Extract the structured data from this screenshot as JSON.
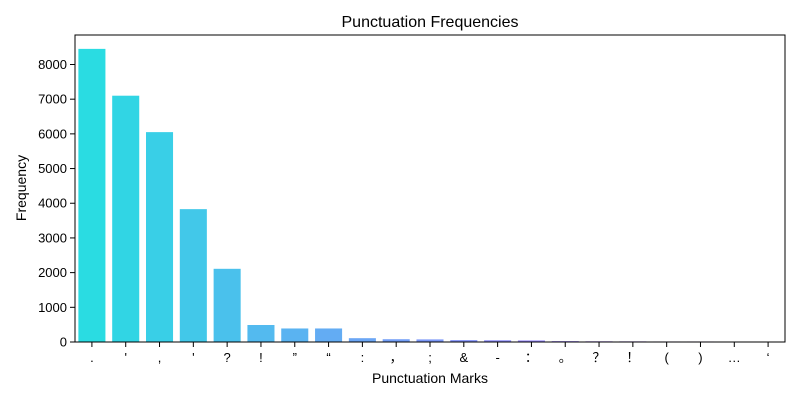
{
  "chart_data": {
    "type": "bar",
    "title": "Punctuation Frequencies",
    "xlabel": "Punctuation Marks",
    "ylabel": "Frequency",
    "ylim": [
      0,
      8850
    ],
    "yticks": [
      0,
      1000,
      2000,
      3000,
      4000,
      5000,
      6000,
      7000,
      8000
    ],
    "grid": false,
    "categories": [
      ".",
      "'",
      ",",
      "'",
      "?",
      "!",
      "”",
      "“",
      ":",
      "，",
      ";",
      "&",
      "-",
      "：",
      "。",
      "？",
      "！",
      "(",
      ")",
      "…",
      "‘"
    ],
    "values": [
      8450,
      7100,
      6050,
      3830,
      2110,
      490,
      390,
      390,
      110,
      80,
      75,
      55,
      50,
      45,
      25,
      20,
      18,
      15,
      15,
      12,
      12
    ],
    "colors": [
      "#2adce2",
      "#31d5e4",
      "#39cfe7",
      "#42c8e9",
      "#4ac1ec",
      "#53baef",
      "#5ab3f1",
      "#63acf3",
      "#6ba6f5",
      "#739ff7",
      "#7b98f8",
      "#8392f9",
      "#8b8bfa",
      "#9384fb",
      "#9a7efb",
      "#a277fc",
      "#a970fc",
      "#b16afc",
      "#b863fc",
      "#bf5cfb",
      "#c656fa"
    ]
  }
}
